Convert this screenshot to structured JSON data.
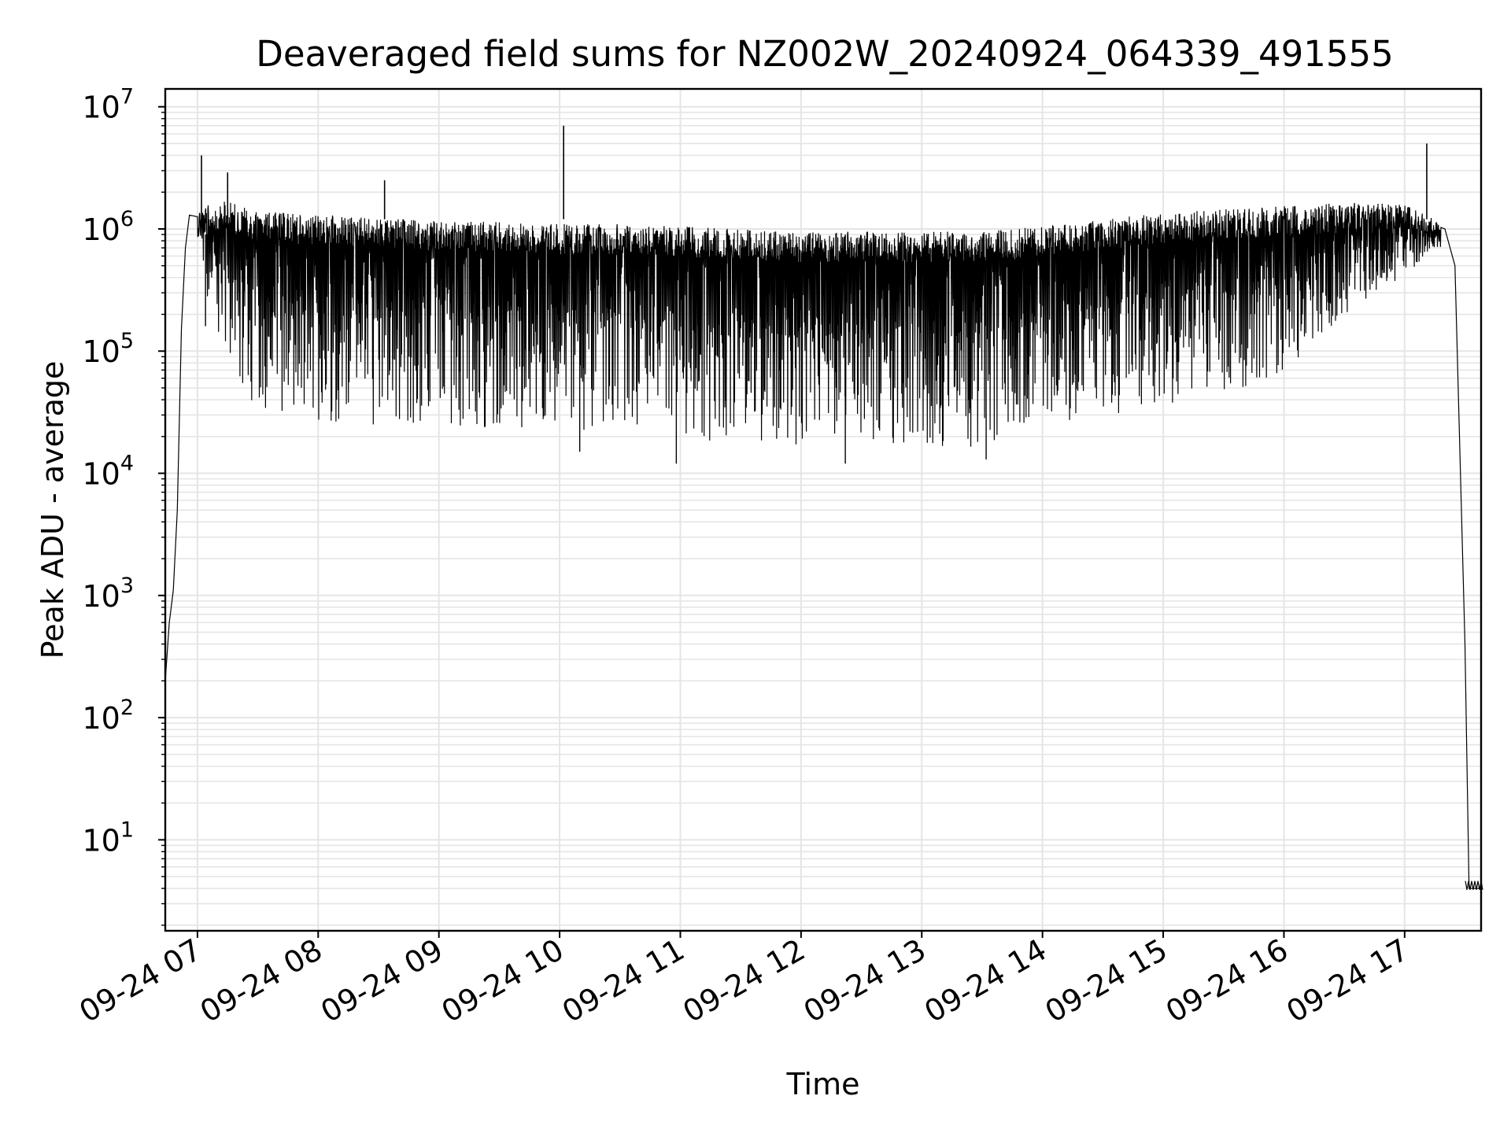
{
  "chart_data": {
    "type": "line",
    "title": "Deaveraged field sums for NZ002W_20240924_064339_491555",
    "xlabel": "Time",
    "ylabel": "Peak ADU - average",
    "yscale": "log",
    "ylim": [
      1.8,
      14000000
    ],
    "xlim": [
      "2024-09-24 06:44",
      "2024-09-24 17:38"
    ],
    "grid": true,
    "grid_minor": true,
    "legend": "none",
    "line_color": "#000000",
    "grid_color": "#e5e5e5",
    "x_ticks": [
      {
        "x": "2024-09-24 07:00",
        "label": "09-24 07"
      },
      {
        "x": "2024-09-24 08:00",
        "label": "09-24 08"
      },
      {
        "x": "2024-09-24 09:00",
        "label": "09-24 09"
      },
      {
        "x": "2024-09-24 10:00",
        "label": "09-24 10"
      },
      {
        "x": "2024-09-24 11:00",
        "label": "09-24 11"
      },
      {
        "x": "2024-09-24 12:00",
        "label": "09-24 12"
      },
      {
        "x": "2024-09-24 13:00",
        "label": "09-24 13"
      },
      {
        "x": "2024-09-24 14:00",
        "label": "09-24 14"
      },
      {
        "x": "2024-09-24 15:00",
        "label": "09-24 15"
      },
      {
        "x": "2024-09-24 16:00",
        "label": "09-24 16"
      },
      {
        "x": "2024-09-24 17:00",
        "label": "09-24 17"
      }
    ],
    "y_ticks": [
      {
        "value": 10,
        "base": "10",
        "exp": "1"
      },
      {
        "value": 100,
        "base": "10",
        "exp": "2"
      },
      {
        "value": 1000,
        "base": "10",
        "exp": "3"
      },
      {
        "value": 10000,
        "base": "10",
        "exp": "4"
      },
      {
        "value": 100000,
        "base": "10",
        "exp": "5"
      },
      {
        "value": 1000000,
        "base": "10",
        "exp": "6"
      },
      {
        "value": 10000000,
        "base": "10",
        "exp": "7"
      }
    ],
    "series": [
      {
        "envelope_upper": [
          {
            "x": "2024-09-24 06:44",
            "y": 200
          },
          {
            "x": "2024-09-24 06:46",
            "y": 600
          },
          {
            "x": "2024-09-24 06:48",
            "y": 1100
          },
          {
            "x": "2024-09-24 06:50",
            "y": 5000
          },
          {
            "x": "2024-09-24 06:52",
            "y": 150000
          },
          {
            "x": "2024-09-24 06:54",
            "y": 700000
          },
          {
            "x": "2024-09-24 06:56",
            "y": 1300000
          },
          {
            "x": "2024-09-24 07:00",
            "y": 1500000
          },
          {
            "x": "2024-09-24 07:15",
            "y": 1700000
          },
          {
            "x": "2024-09-24 07:30",
            "y": 1400000
          },
          {
            "x": "2024-09-24 08:00",
            "y": 1300000
          },
          {
            "x": "2024-09-24 08:30",
            "y": 1250000
          },
          {
            "x": "2024-09-24 09:00",
            "y": 1150000
          },
          {
            "x": "2024-09-24 09:30",
            "y": 1150000
          },
          {
            "x": "2024-09-24 10:00",
            "y": 1100000
          },
          {
            "x": "2024-09-24 10:30",
            "y": 1100000
          },
          {
            "x": "2024-09-24 11:00",
            "y": 1050000
          },
          {
            "x": "2024-09-24 11:30",
            "y": 1000000
          },
          {
            "x": "2024-09-24 12:00",
            "y": 950000
          },
          {
            "x": "2024-09-24 12:30",
            "y": 950000
          },
          {
            "x": "2024-09-24 13:00",
            "y": 950000
          },
          {
            "x": "2024-09-24 13:30",
            "y": 950000
          },
          {
            "x": "2024-09-24 14:00",
            "y": 1050000
          },
          {
            "x": "2024-09-24 14:30",
            "y": 1200000
          },
          {
            "x": "2024-09-24 15:00",
            "y": 1350000
          },
          {
            "x": "2024-09-24 15:30",
            "y": 1450000
          },
          {
            "x": "2024-09-24 16:00",
            "y": 1550000
          },
          {
            "x": "2024-09-24 16:30",
            "y": 1650000
          },
          {
            "x": "2024-09-24 17:00",
            "y": 1600000
          },
          {
            "x": "2024-09-24 17:15",
            "y": 1200000
          },
          {
            "x": "2024-09-24 17:20",
            "y": 1000000
          },
          {
            "x": "2024-09-24 17:25",
            "y": 500000
          },
          {
            "x": "2024-09-24 17:30",
            "y": 400
          },
          {
            "x": "2024-09-24 17:32",
            "y": 4
          },
          {
            "x": "2024-09-24 17:38",
            "y": 4
          }
        ],
        "envelope_lower": [
          {
            "x": "2024-09-24 07:00",
            "y": 500000
          },
          {
            "x": "2024-09-24 07:10",
            "y": 150000
          },
          {
            "x": "2024-09-24 07:20",
            "y": 50000
          },
          {
            "x": "2024-09-24 07:40",
            "y": 25000
          },
          {
            "x": "2024-09-24 08:00",
            "y": 25000
          },
          {
            "x": "2024-09-24 09:00",
            "y": 25000
          },
          {
            "x": "2024-09-24 10:00",
            "y": 22000
          },
          {
            "x": "2024-09-24 11:00",
            "y": 18000
          },
          {
            "x": "2024-09-24 12:00",
            "y": 17000
          },
          {
            "x": "2024-09-24 13:00",
            "y": 16000
          },
          {
            "x": "2024-09-24 13:30",
            "y": 15000
          },
          {
            "x": "2024-09-24 14:00",
            "y": 25000
          },
          {
            "x": "2024-09-24 15:00",
            "y": 35000
          },
          {
            "x": "2024-09-24 16:00",
            "y": 60000
          },
          {
            "x": "2024-09-24 16:30",
            "y": 200000
          },
          {
            "x": "2024-09-24 17:00",
            "y": 400000
          },
          {
            "x": "2024-09-24 17:15",
            "y": 700000
          }
        ],
        "spikes": [
          {
            "x": "2024-09-24 07:02",
            "y": 4000000
          },
          {
            "x": "2024-09-24 07:15",
            "y": 2900000
          },
          {
            "x": "2024-09-24 08:33",
            "y": 2500000
          },
          {
            "x": "2024-09-24 10:02",
            "y": 7000000
          },
          {
            "x": "2024-09-24 17:11",
            "y": 5000000
          }
        ],
        "dips": [
          {
            "x": "2024-09-24 07:04",
            "y": 160000
          },
          {
            "x": "2024-09-24 10:10",
            "y": 15000
          },
          {
            "x": "2024-09-24 10:58",
            "y": 12000
          },
          {
            "x": "2024-09-24 12:22",
            "y": 12000
          },
          {
            "x": "2024-09-24 13:32",
            "y": 13000
          }
        ]
      }
    ]
  }
}
